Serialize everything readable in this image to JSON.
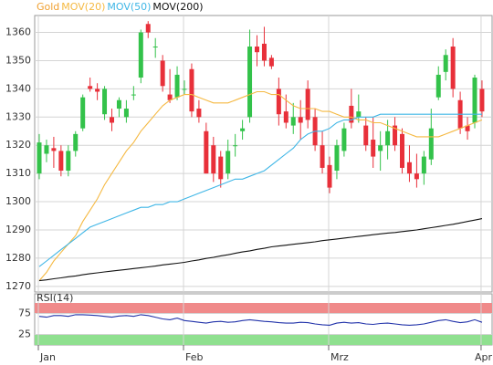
{
  "chart_data": [
    {
      "type": "candlestick",
      "categories": [
        "Jan",
        null,
        null,
        null,
        null,
        null,
        null,
        null,
        null,
        null,
        null,
        null,
        null,
        null,
        null,
        null,
        null,
        null,
        null,
        null,
        "Feb",
        null,
        null,
        null,
        null,
        null,
        null,
        null,
        null,
        null,
        null,
        null,
        null,
        null,
        null,
        null,
        null,
        null,
        null,
        null,
        "Mrz",
        null,
        null,
        null,
        null,
        null,
        null,
        null,
        null,
        null,
        null,
        null,
        null,
        null,
        null,
        null,
        null,
        null,
        null,
        null,
        null,
        "Apr"
      ],
      "series": [
        {
          "name": "Gold",
          "color": "#f0a030",
          "up_color": "#33c24a",
          "down_color": "#e8303a",
          "open": [
            1310,
            1317,
            1319,
            1318,
            1311,
            1318,
            1326,
            1341,
            1340,
            1331,
            1330,
            1333,
            1330,
            1338,
            1344,
            1363,
            1355,
            1350,
            1338,
            1337,
            1340,
            1347,
            1333,
            1325,
            1320,
            1316,
            1310,
            1320,
            1325,
            1330,
            1355,
            1356,
            1351,
            1340,
            1332,
            1327,
            1330,
            1340,
            1330,
            1320,
            1313,
            1311,
            1318,
            1334,
            1330,
            1327,
            1322,
            1318,
            1320,
            1327,
            1324,
            1314,
            1310,
            1310,
            1315,
            1337,
            1346,
            1355,
            1336,
            1327,
            1328,
            1340
          ],
          "high": [
            1324,
            1322,
            1323,
            1320,
            1320,
            1325,
            1338,
            1344,
            1342,
            1341,
            1333,
            1337,
            1336,
            1341,
            1361,
            1364,
            1358,
            1352,
            1347,
            1348,
            1343,
            1349,
            1336,
            1328,
            1323,
            1318,
            1322,
            1324,
            1329,
            1361,
            1359,
            1362,
            1352,
            1344,
            1338,
            1335,
            1336,
            1343,
            1333,
            1325,
            1316,
            1322,
            1328,
            1340,
            1338,
            1330,
            1330,
            1325,
            1329,
            1330,
            1326,
            1320,
            1317,
            1318,
            1333,
            1348,
            1354,
            1358,
            1339,
            1330,
            1345,
            1343
          ],
          "low": [
            1308,
            1314,
            1312,
            1309,
            1309,
            1316,
            1325,
            1339,
            1336,
            1329,
            1325,
            1330,
            1328,
            1336,
            1342,
            1358,
            1351,
            1339,
            1335,
            1336,
            1338,
            1330,
            1328,
            1310,
            1307,
            1305,
            1308,
            1316,
            1322,
            1328,
            1348,
            1348,
            1347,
            1327,
            1326,
            1324,
            1322,
            1326,
            1318,
            1310,
            1303,
            1308,
            1316,
            1326,
            1328,
            1318,
            1312,
            1311,
            1315,
            1318,
            1310,
            1307,
            1305,
            1306,
            1313,
            1336,
            1343,
            1337,
            1324,
            1322,
            1326,
            1330
          ],
          "close": [
            1321,
            1320,
            1318,
            1311,
            1318,
            1324,
            1337,
            1340,
            1339,
            1340,
            1328,
            1336,
            1333,
            1338,
            1360,
            1360,
            1355,
            1341,
            1336,
            1345,
            1340,
            1332,
            1330,
            1310,
            1310,
            1308,
            1318,
            1320,
            1326,
            1355,
            1353,
            1350,
            1348,
            1331,
            1328,
            1330,
            1328,
            1329,
            1320,
            1312,
            1305,
            1320,
            1326,
            1328,
            1332,
            1320,
            1316,
            1320,
            1325,
            1320,
            1312,
            1310,
            1308,
            1316,
            1326,
            1345,
            1352,
            1340,
            1326,
            1325,
            1344,
            1332
          ]
        },
        {
          "name": "MOV(20)",
          "color": "#f5b942",
          "values": [
            1272,
            1275,
            1279,
            1282,
            1285,
            1288,
            1293,
            1297,
            1301,
            1306,
            1310,
            1314,
            1318,
            1321,
            1325,
            1328,
            1331,
            1334,
            1336,
            1337,
            1338,
            1338,
            1337,
            1336,
            1335,
            1335,
            1335,
            1336,
            1337,
            1338,
            1339,
            1339,
            1338,
            1338,
            1336,
            1334,
            1333,
            1333,
            1333,
            1332,
            1332,
            1331,
            1330,
            1330,
            1329,
            1329,
            1328,
            1328,
            1327,
            1326,
            1325,
            1324,
            1323,
            1323,
            1323,
            1323,
            1324,
            1325,
            1326,
            1327,
            1328,
            1329
          ]
        },
        {
          "name": "MOV(50)",
          "color": "#3fb6e6",
          "values": [
            1277,
            1279,
            1281,
            1283,
            1285,
            1287,
            1289,
            1291,
            1292,
            1293,
            1294,
            1295,
            1296,
            1297,
            1298,
            1298,
            1299,
            1299,
            1300,
            1300,
            1301,
            1302,
            1303,
            1304,
            1305,
            1306,
            1307,
            1308,
            1308,
            1309,
            1310,
            1311,
            1313,
            1315,
            1317,
            1319,
            1322,
            1324,
            1325,
            1325,
            1326,
            1328,
            1329,
            1329,
            1330,
            1330,
            1330,
            1331,
            1331,
            1331,
            1331,
            1331,
            1331,
            1331,
            1331,
            1331,
            1331,
            1331,
            1331,
            1331,
            1331,
            1331
          ]
        },
        {
          "name": "MOV(200)",
          "color": "#111111",
          "values": [
            1272,
            1272.3,
            1272.7,
            1273,
            1273.4,
            1273.7,
            1274.1,
            1274.5,
            1274.8,
            1275.1,
            1275.4,
            1275.7,
            1276,
            1276.3,
            1276.6,
            1276.9,
            1277.2,
            1277.6,
            1277.9,
            1278.2,
            1278.5,
            1279,
            1279.4,
            1279.9,
            1280.3,
            1280.8,
            1281.2,
            1281.7,
            1282.2,
            1282.6,
            1283.1,
            1283.5,
            1284,
            1284.3,
            1284.6,
            1284.9,
            1285.2,
            1285.5,
            1285.8,
            1286.2,
            1286.5,
            1286.8,
            1287.1,
            1287.4,
            1287.7,
            1288,
            1288.3,
            1288.6,
            1288.9,
            1289.1,
            1289.4,
            1289.7,
            1290,
            1290.4,
            1290.8,
            1291.2,
            1291.6,
            1292,
            1292.5,
            1293,
            1293.5,
            1294
          ]
        }
      ],
      "ylim": [
        1268,
        1366
      ],
      "yticks": [
        1270,
        1280,
        1290,
        1300,
        1310,
        1320,
        1330,
        1340,
        1350,
        1360
      ],
      "grid": true
    },
    {
      "type": "line",
      "title": "RSI(14)",
      "series": [
        {
          "name": "RSI(14)",
          "color": "#2233aa",
          "values": [
            68,
            66,
            70,
            70,
            68,
            72,
            72,
            71,
            70,
            68,
            66,
            69,
            70,
            68,
            72,
            70,
            66,
            62,
            60,
            64,
            58,
            56,
            54,
            52,
            55,
            56,
            54,
            55,
            58,
            60,
            58,
            56,
            55,
            53,
            52,
            52,
            54,
            53,
            50,
            48,
            47,
            52,
            54,
            52,
            53,
            50,
            49,
            51,
            52,
            50,
            48,
            47,
            48,
            50,
            54,
            58,
            60,
            56,
            53,
            55,
            60,
            54
          ]
        }
      ],
      "ylim": [
        0,
        100
      ],
      "yticks": [
        25,
        75
      ],
      "overbought_color": "#f08a8a",
      "oversold_color": "#8fe08f",
      "grid": true
    }
  ]
}
